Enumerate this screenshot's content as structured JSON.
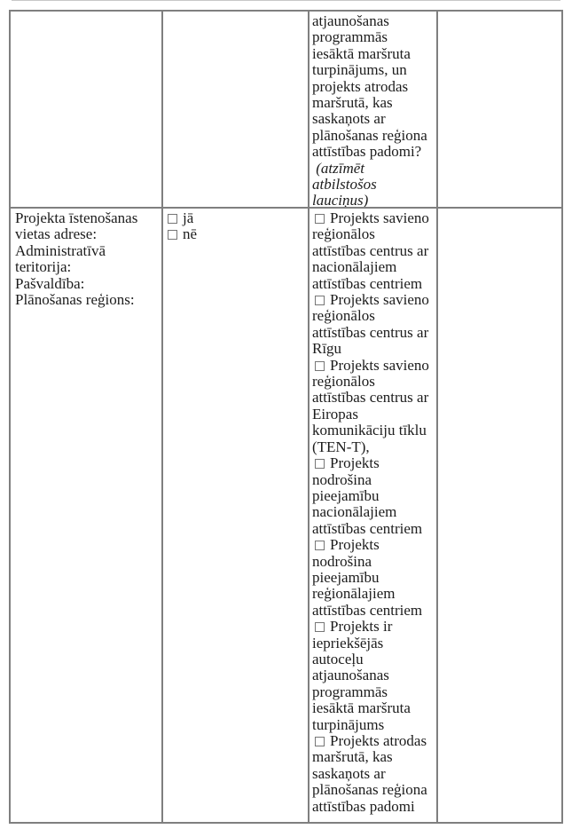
{
  "colors": {
    "table_border": "#7f7f7f",
    "text": "#1c1c1c",
    "checkbox_border": "#767676",
    "top_remnant_line": "#c8c8c8",
    "background": "#ffffff"
  },
  "row1": {
    "col3": {
      "question": "atjaunošanas\nprogrammās\niesāktā maršruta\nturpinājums, un\nprojekts atrodas\nmaršrutā, kas\nsaskaņots ar\nplānošanas reģiona\nattīstības padomi?",
      "note": " (atzīmēt\natbilstošos\nlauciņus)"
    }
  },
  "row2": {
    "col1": {
      "text": "Projekta īstenošanas\nvietas adrese:\nAdministratīvā\nteritorija:\nPašvaldība:\nPlānošanas reģions:"
    },
    "col2": {
      "options": [
        {
          "label": "jā",
          "checked": false
        },
        {
          "label": "nē",
          "checked": false
        }
      ]
    },
    "col3": {
      "options": [
        {
          "label": "Projekts savieno\nreģionālos\nattīstības centrus ar\nnacionālajiem\nattīstības centriem",
          "checked": false
        },
        {
          "label": "Projekts savieno\nreģionālos\nattīstības centrus ar\nRīgu",
          "checked": false
        },
        {
          "label": "Projekts savieno\nreģionālos\nattīstības centrus ar\nEiropas\nkomunikāciju tīklu\n(TEN-T),",
          "checked": false
        },
        {
          "label": "Projekts\nnodrošina\npieejamību\nnacionālajiem\nattīstības centriem",
          "checked": false
        },
        {
          "label": "Projekts\nnodrošina\npieejamību\nreģionālajiem\nattīstības centriem",
          "checked": false
        },
        {
          "label": "Projekts ir\niepriekšējās\nautoceļu\natjaunošanas\nprogrammās\niesāktā maršruta\nturpinājums",
          "checked": false
        },
        {
          "label": "Projekts atrodas\nmaršrutā, kas\nsaskaņots ar\nplānošanas reģiona\nattīstības padomi",
          "checked": false
        }
      ]
    }
  }
}
